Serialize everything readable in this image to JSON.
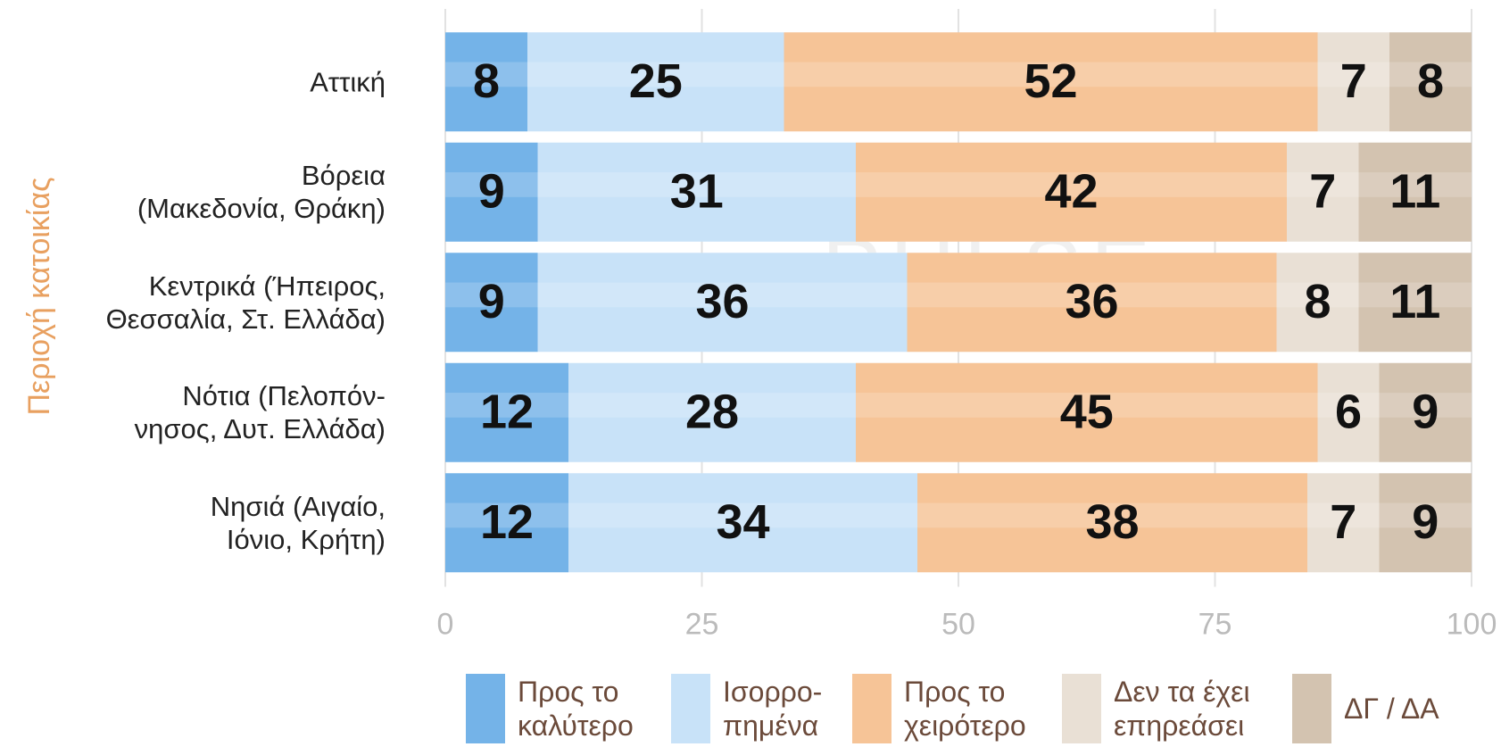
{
  "chart_data": {
    "type": "stacked_barh",
    "ylabel": "Περιοχή κατοικίας",
    "watermark": "PULSE",
    "watermark_sub": "RESEARCH & CONSULTING",
    "categories": [
      "Αττική",
      "Βόρεια\n(Μακεδονία, Θράκη)",
      "Κεντρικά (Ήπειρος,\nΘεσσαλία, Στ. Ελλάδα)",
      "Νότια (Πελοπόν-\nνησος, Δυτ. Ελλάδα)",
      "Νησιά (Αιγαίο,\nΙόνιο, Κρήτη)"
    ],
    "series": [
      {
        "name": "Προς το\nκαλύτερο",
        "color": "#74b3e8",
        "values": [
          8,
          9,
          9,
          12,
          12
        ]
      },
      {
        "name": "Ισορρο-\nπημένα",
        "color": "#c8e2f8",
        "values": [
          25,
          31,
          36,
          28,
          34
        ]
      },
      {
        "name": "Προς το\nχειρότερο",
        "color": "#f6c497",
        "values": [
          52,
          42,
          36,
          45,
          38
        ]
      },
      {
        "name": "Δεν τα έχει\nεπηρεάσει",
        "color": "#e9e0d5",
        "values": [
          7,
          7,
          8,
          6,
          7
        ]
      },
      {
        "name": "ΔΓ / ΔΑ",
        "color": "#d3c3b0",
        "values": [
          8,
          11,
          11,
          9,
          9
        ]
      }
    ],
    "xlim": [
      0,
      100
    ],
    "xticks": [
      0,
      25,
      50,
      75,
      100
    ],
    "grid": true
  }
}
